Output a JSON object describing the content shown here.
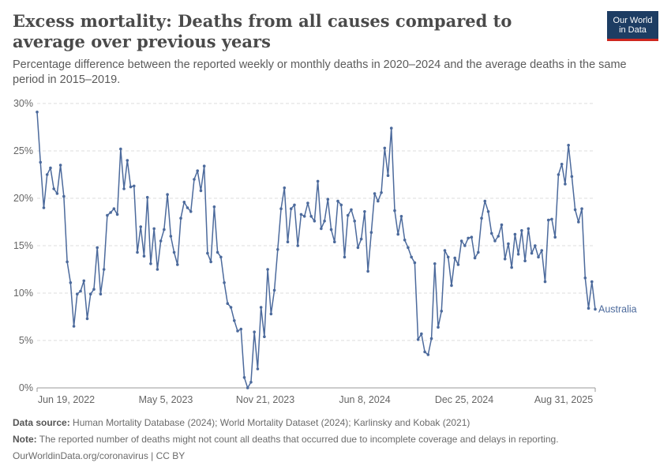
{
  "header": {
    "title": "Excess mortality: Deaths from all causes compared to average over previous years",
    "subtitle": "Percentage difference between the reported weekly or monthly deaths in 2020–2024 and the average deaths in the same period in 2015–2019.",
    "logo_line1": "Our World",
    "logo_line2": "in Data"
  },
  "footer": {
    "source_label": "Data source:",
    "source_text": "Human Mortality Database (2024); World Mortality Dataset (2024); Karlinsky and Kobak (2021)",
    "note_label": "Note:",
    "note_text": "The reported number of deaths might not count all deaths that occurred due to incomplete coverage and delays in reporting.",
    "credit": "OurWorldinData.org/coronavirus | CC BY"
  },
  "colors": {
    "series": "#4c6a9c",
    "logo_bg": "#1d3d63",
    "logo_accent": "#ce261e"
  },
  "chart_data": {
    "type": "line",
    "y_tick_labels": [
      "0%",
      "5%",
      "10%",
      "15%",
      "20%",
      "25%",
      "30%"
    ],
    "y_ticks": [
      0,
      5,
      10,
      15,
      20,
      25,
      30
    ],
    "ylim": [
      0,
      30
    ],
    "x_tick_labels": [
      "Jun 19, 2022",
      "May 5, 2023",
      "Nov 21, 2023",
      "Jun 8, 2024",
      "Dec 25, 2024",
      "Aug 31, 2025"
    ],
    "grid": "horizontal dashed",
    "series": [
      {
        "name": "Australia",
        "values": [
          29.1,
          23.8,
          19.0,
          22.5,
          23.2,
          21.0,
          20.5,
          23.5,
          20.2,
          13.3,
          11.1,
          6.5,
          9.9,
          10.2,
          11.3,
          7.3,
          9.9,
          10.4,
          14.8,
          9.9,
          12.5,
          18.2,
          18.5,
          18.9,
          18.3,
          25.2,
          21.0,
          24.0,
          21.2,
          21.3,
          14.3,
          17.0,
          13.9,
          20.1,
          13.1,
          16.8,
          12.5,
          15.5,
          16.7,
          20.4,
          16.0,
          14.3,
          13.0,
          17.9,
          19.6,
          19.0,
          18.6,
          22.0,
          22.9,
          20.8,
          23.4,
          14.2,
          13.3,
          19.1,
          14.3,
          13.8,
          11.1,
          8.9,
          8.5,
          7.1,
          6.0,
          6.2,
          1.1,
          0.0,
          0.6,
          5.9,
          2.0,
          8.5,
          5.4,
          12.5,
          7.8,
          10.3,
          14.6,
          18.9,
          21.1,
          15.4,
          18.9,
          19.3,
          15.0,
          18.3,
          18.1,
          19.5,
          18.1,
          17.6,
          21.8,
          16.8,
          17.6,
          19.9,
          16.7,
          15.4,
          19.7,
          19.3,
          13.8,
          18.2,
          18.8,
          17.6,
          14.8,
          15.7,
          18.6,
          12.3,
          16.4,
          20.5,
          19.7,
          20.6,
          25.3,
          22.4,
          27.4,
          18.7,
          16.2,
          18.1,
          15.6,
          14.8,
          13.8,
          13.2,
          5.1,
          5.7,
          3.8,
          3.5,
          5.2,
          13.1,
          6.4,
          8.1,
          14.5,
          13.8,
          10.8,
          13.7,
          13.0,
          15.5,
          15.0,
          15.8,
          15.9,
          13.7,
          14.3,
          17.9,
          19.7,
          18.6,
          16.3,
          15.5,
          16.0,
          17.2,
          13.6,
          15.2,
          12.7,
          16.2,
          14.1,
          16.6,
          13.4,
          16.8,
          14.2,
          15.0,
          13.8,
          14.5,
          11.2,
          17.7,
          17.8,
          15.9,
          22.5,
          23.6,
          21.5,
          25.6,
          22.3,
          18.8,
          17.5,
          18.9,
          11.6,
          8.4,
          11.2,
          8.3
        ]
      }
    ]
  }
}
